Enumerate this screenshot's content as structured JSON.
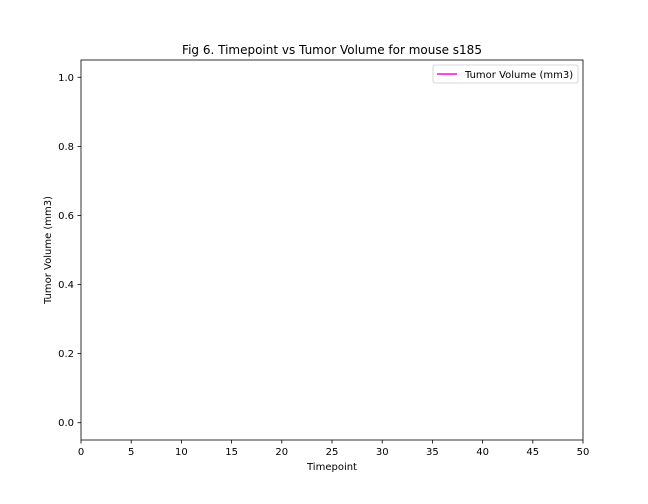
{
  "chart_data": {
    "type": "line",
    "title": "Fig 6. Timepoint vs Tumor Volume for mouse s185",
    "xlabel": "Timepoint",
    "ylabel": "Tumor Volume (mm3)",
    "xlim": [
      0,
      50
    ],
    "ylim": [
      -0.05,
      1.05
    ],
    "xticks": [
      0,
      5,
      10,
      15,
      20,
      25,
      30,
      35,
      40,
      45,
      50
    ],
    "yticks": [
      0.0,
      0.2,
      0.4,
      0.6,
      0.8,
      1.0
    ],
    "grid": false,
    "legend_position": "upper right",
    "series": [
      {
        "name": "Tumor Volume (mm3)",
        "color": "#ff00ff",
        "x": [],
        "y": []
      }
    ]
  }
}
